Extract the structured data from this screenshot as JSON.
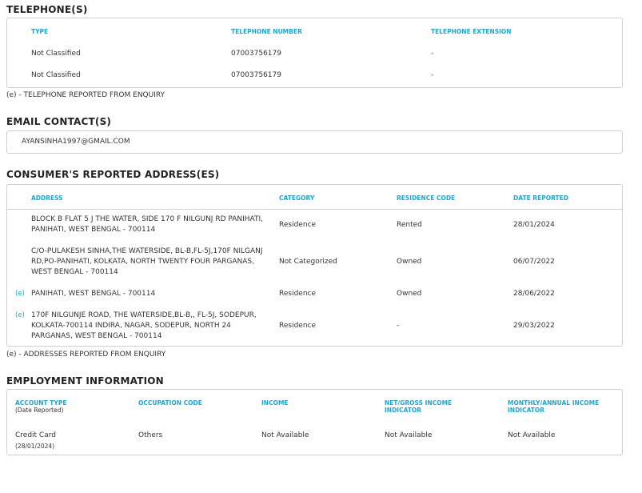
{
  "telephones": {
    "title": "TELEPHONE(S)",
    "headers": [
      "TYPE",
      "TELEPHONE NUMBER",
      "TELEPHONE EXTENSION"
    ],
    "rows": [
      [
        "Not Classified",
        "07003756179",
        "-"
      ],
      [
        "Not Classified",
        "07003756179",
        "-"
      ]
    ],
    "footnote": "(e) - TELEPHONE REPORTED FROM ENQUIRY"
  },
  "emails": {
    "title": "EMAIL CONTACT(S)",
    "items": [
      "AYANSINHA1997@GMAIL.COM"
    ]
  },
  "addresses": {
    "title": "CONSUMER'S REPORTED ADDRESS(ES)",
    "headers": [
      "ADDRESS",
      "CATEGORY",
      "RESIDENCE CODE",
      "DATE REPORTED"
    ],
    "rows": [
      {
        "flag": "",
        "address": "BLOCK B FLAT 5 J THE WATER, SIDE 170 F NILGUNJ RD PANIHATI, PANIHATI, WEST BENGAL - 700114",
        "category": "Residence",
        "residence": "Rented",
        "date": "28/01/2024"
      },
      {
        "flag": "",
        "address": "C/O-PULAKESH SINHA,THE WATERSIDE, BL-B,FL-5J,170F NILGANJ RD,PO-PANIHATI, KOLKATA, NORTH TWENTY FOUR PARGANAS, WEST BENGAL - 700114",
        "category": "Not Categorized",
        "residence": "Owned",
        "date": "06/07/2022"
      },
      {
        "flag": "(e)",
        "address": "PANIHATI, WEST BENGAL - 700114",
        "category": "Residence",
        "residence": "Owned",
        "date": "28/06/2022"
      },
      {
        "flag": "(e)",
        "address": "170F NILGUNJE ROAD, THE WATERSIDE,BL-B,, FL-5J, SODEPUR, KOLKATA-700114 INDIRA, NAGAR, SODEPUR, NORTH 24 PARGANAS, WEST BENGAL - 700114",
        "category": "Residence",
        "residence": "-",
        "date": "29/03/2022"
      }
    ],
    "footnote": "(e) - ADDRESSES REPORTED FROM ENQUIRY"
  },
  "employment": {
    "title": "EMPLOYMENT INFORMATION",
    "headers": [
      "ACCOUNT TYPE",
      "OCCUPATION CODE",
      "INCOME",
      "NET/GROSS INCOME INDICATOR",
      "MONTHLY/ANNUAL INCOME INDICATOR"
    ],
    "header_sub": "(Date Reported)",
    "row": {
      "account_type": "Credit Card",
      "date": "(28/01/2024)",
      "occupation": "Others",
      "income": "Not Available",
      "net_gross": "Not Available",
      "monthly_annual": "Not Available"
    }
  },
  "accent_color": "#1aa7d0"
}
